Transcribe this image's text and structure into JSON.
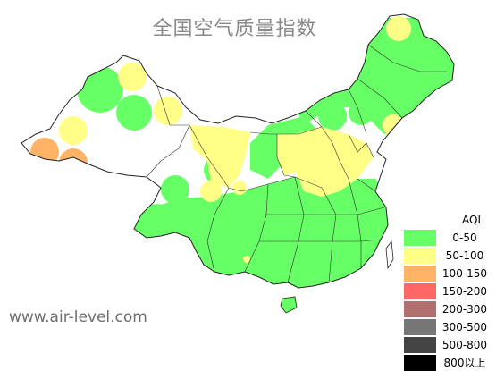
{
  "title": "全国空气质量指数",
  "watermark": "www.air-level.com",
  "legend": {
    "title": "AQI",
    "items": [
      {
        "label": "0-50",
        "color": "#66ff66"
      },
      {
        "label": "50-100",
        "color": "#ffff88"
      },
      {
        "label": "100-150",
        "color": "#ffb366"
      },
      {
        "label": "150-200",
        "color": "#ff6666"
      },
      {
        "label": "200-300",
        "color": "#b07070"
      },
      {
        "label": "300-500",
        "color": "#767676"
      },
      {
        "label": "500-800",
        "color": "#444444"
      },
      {
        "label": "800以上",
        "color": "#000000"
      }
    ]
  },
  "colors": {
    "good": "#66ff66",
    "moderate": "#ffff88",
    "unhealthy_sensitive": "#ffb366",
    "border": "#333333",
    "unfilled": "#ffffff"
  }
}
